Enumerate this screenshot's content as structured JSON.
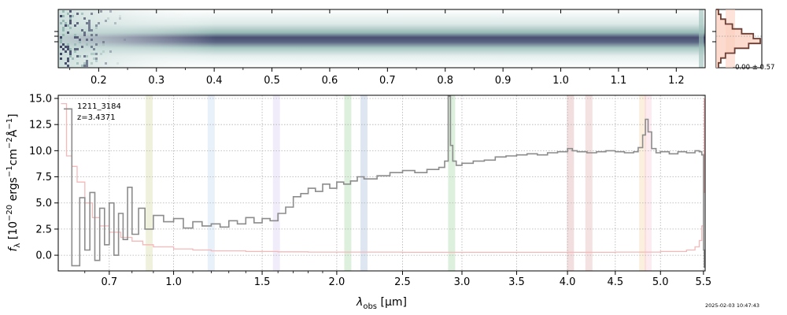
{
  "chart_data": [
    {
      "type": "heatmap",
      "panel": "2d-spectrum",
      "top_ticks": [
        "0.2",
        "0.3",
        "0.4",
        "0.5",
        "0.6",
        "0.7",
        "0.8",
        "0.9",
        "1.0",
        "1.1",
        "1.2"
      ],
      "top_tick_values": [
        0.2,
        0.3,
        0.4,
        0.5,
        0.6,
        0.7,
        0.8,
        0.9,
        1.0,
        1.1,
        1.2
      ],
      "colormap": [
        "#ffffff",
        "#aecfc9",
        "#3b3f64"
      ]
    },
    {
      "type": "line",
      "panel": "1d-spectrum",
      "annotation_id": "1211_3184",
      "annotation_z": "z=3.4371",
      "xlabel_html": "λ<sub>obs</sub> [μm]",
      "xlabel_main": "λ",
      "xlabel_sub": "obs",
      "xlabel_unit": " [μm]",
      "ylabel_main": "f",
      "ylabel_sub": "λ",
      "ylabel_unit": " [10",
      "ylabel_exp1": "−20",
      "ylabel_mid1": " ergs",
      "ylabel_exp2": "−1",
      "ylabel_mid2": "cm",
      "ylabel_exp3": "−2",
      "ylabel_mid3": "Å",
      "ylabel_exp4": "−1",
      "ylabel_end": "]",
      "xlim": [
        0.5,
        5.52
      ],
      "ylim": [
        -1.5,
        15.3
      ],
      "xticks": [
        0.7,
        1.0,
        1.5,
        2.0,
        2.5,
        3.0,
        3.5,
        4.0,
        4.5,
        5.0,
        5.5
      ],
      "xtick_labels": [
        "0.7",
        "1.0",
        "1.5",
        "2.0",
        "2.5",
        "3.0",
        "3.5",
        "4.0",
        "4.5",
        "5.0",
        "5.5"
      ],
      "yticks": [
        0.0,
        2.5,
        5.0,
        7.5,
        10.0,
        12.5,
        15.0
      ],
      "ytick_labels": [
        "0.0",
        "2.5",
        "5.0",
        "7.5",
        "10.0",
        "12.5",
        "15.0"
      ],
      "grid": true,
      "line_bands": [
        {
          "x": 0.88,
          "color": "#d4d89a"
        },
        {
          "x": 1.2,
          "color": "#bcd3f0"
        },
        {
          "x": 1.59,
          "color": "#d7c9ee"
        },
        {
          "x": 2.08,
          "color": "#9fd39f"
        },
        {
          "x": 2.2,
          "color": "#9fb8d6"
        },
        {
          "x": 2.91,
          "color": "#9fd39f"
        },
        {
          "x": 4.03,
          "color": "#d9a0a0"
        },
        {
          "x": 4.22,
          "color": "#e0a8a8"
        },
        {
          "x": 4.8,
          "color": "#f3d0a0"
        },
        {
          "x": 4.86,
          "color": "#f5c6d6"
        }
      ],
      "series": [
        {
          "role": "flux",
          "color": "#8c8c8c",
          "x": [
            0.52,
            0.55,
            0.58,
            0.6,
            0.62,
            0.64,
            0.66,
            0.68,
            0.7,
            0.72,
            0.74,
            0.76,
            0.78,
            0.8,
            0.83,
            0.86,
            0.9,
            0.95,
            1.0,
            1.05,
            1.1,
            1.15,
            1.2,
            1.25,
            1.3,
            1.35,
            1.4,
            1.45,
            1.5,
            1.55,
            1.6,
            1.65,
            1.7,
            1.75,
            1.8,
            1.85,
            1.9,
            1.95,
            2.0,
            2.05,
            2.1,
            2.15,
            2.2,
            2.3,
            2.4,
            2.5,
            2.6,
            2.7,
            2.8,
            2.85,
            2.88,
            2.9,
            2.92,
            2.95,
            3.0,
            3.1,
            3.2,
            3.3,
            3.4,
            3.5,
            3.6,
            3.7,
            3.8,
            3.9,
            4.0,
            4.05,
            4.1,
            4.2,
            4.3,
            4.4,
            4.5,
            4.6,
            4.7,
            4.75,
            4.8,
            4.83,
            4.86,
            4.9,
            4.95,
            5.0,
            5.1,
            5.2,
            5.3,
            5.4,
            5.45,
            5.48,
            5.5,
            5.51
          ],
          "y": [
            14.0,
            -1.0,
            5.5,
            0.5,
            6.0,
            -0.5,
            4.5,
            1.0,
            5.0,
            0.0,
            4.0,
            1.5,
            6.5,
            2.0,
            4.5,
            2.5,
            3.8,
            3.2,
            3.5,
            2.6,
            3.2,
            2.8,
            3.0,
            2.7,
            3.3,
            3.0,
            3.6,
            3.1,
            3.5,
            3.3,
            4.0,
            4.6,
            5.6,
            5.9,
            6.4,
            6.1,
            6.8,
            6.4,
            7.0,
            6.8,
            7.1,
            7.5,
            7.3,
            7.6,
            7.9,
            8.1,
            7.9,
            8.2,
            8.4,
            9.0,
            15.2,
            10.5,
            9.0,
            8.6,
            8.8,
            9.0,
            9.1,
            9.4,
            9.5,
            9.6,
            9.7,
            9.6,
            9.8,
            9.9,
            10.2,
            10.0,
            9.9,
            9.8,
            9.9,
            10.0,
            9.9,
            9.8,
            9.9,
            10.3,
            11.5,
            13.0,
            11.8,
            10.2,
            9.8,
            9.9,
            9.7,
            9.9,
            9.8,
            10.0,
            9.9,
            9.6,
            0.5,
            -1.2
          ]
        },
        {
          "role": "error",
          "color": "#f4b8b8",
          "x": [
            0.51,
            0.53,
            0.55,
            0.57,
            0.6,
            0.63,
            0.66,
            0.7,
            0.75,
            0.8,
            0.85,
            0.9,
            1.0,
            1.1,
            1.2,
            1.4,
            1.6,
            1.8,
            2.0,
            2.5,
            3.0,
            3.5,
            4.0,
            4.5,
            5.0,
            5.3,
            5.4,
            5.45,
            5.48,
            5.5,
            5.51
          ],
          "y": [
            14.5,
            9.5,
            8.5,
            7.0,
            5.0,
            3.6,
            2.8,
            2.2,
            1.7,
            1.35,
            1.0,
            0.8,
            0.6,
            0.5,
            0.42,
            0.35,
            0.32,
            0.3,
            0.3,
            0.28,
            0.28,
            0.28,
            0.28,
            0.3,
            0.35,
            0.5,
            0.8,
            1.4,
            2.8,
            6.0,
            15.0
          ]
        }
      ]
    },
    {
      "type": "histogram",
      "panel": "profile",
      "annotation": "-0.00 ± 0.57",
      "bins_y": [
        1,
        2,
        3,
        4,
        5,
        6,
        7,
        8,
        9,
        10,
        11,
        12
      ],
      "bins_value": [
        0.05,
        0.1,
        0.2,
        0.35,
        0.55,
        0.8,
        0.95,
        0.7,
        0.4,
        0.2,
        0.1,
        0.05
      ],
      "fill": "#fbd1c2",
      "line": "#6b3e34"
    }
  ],
  "footer": {
    "timestamp": "2025-02-03 10:47:43"
  }
}
